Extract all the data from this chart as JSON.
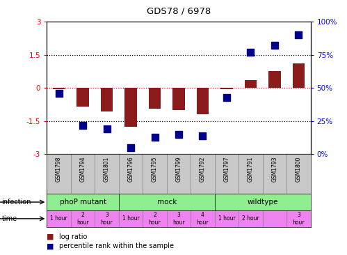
{
  "title": "GDS78 / 6978",
  "samples": [
    "GSM1798",
    "GSM1794",
    "GSM1801",
    "GSM1796",
    "GSM1795",
    "GSM1799",
    "GSM1792",
    "GSM1797",
    "GSM1791",
    "GSM1793",
    "GSM1800"
  ],
  "log_ratio": [
    -0.05,
    -0.85,
    -1.05,
    -1.75,
    -0.95,
    -1.0,
    -1.2,
    -0.05,
    0.35,
    0.75,
    1.1
  ],
  "percentile": [
    46,
    22,
    19,
    5,
    13,
    15,
    14,
    43,
    77,
    82,
    90
  ],
  "ylim": [
    -3,
    3
  ],
  "y2lim": [
    0,
    100
  ],
  "yticks": [
    -3,
    -1.5,
    0,
    1.5,
    3
  ],
  "y2ticks": [
    0,
    25,
    50,
    75,
    100
  ],
  "ytick_labels": [
    "-3",
    "-1.5",
    "0",
    "1.5",
    "3"
  ],
  "y2tick_labels": [
    "0%",
    "25%",
    "50%",
    "75%",
    "100%"
  ],
  "bar_color": "#8B1A1A",
  "dot_color": "#00008B",
  "bg_color": "#ffffff",
  "n_samples": 11,
  "bar_width": 0.5,
  "dot_size": 50,
  "infection_groups": [
    {
      "label": "phoP mutant",
      "start": 0,
      "end": 2
    },
    {
      "label": "mock",
      "start": 3,
      "end": 6
    },
    {
      "label": "wildtype",
      "start": 7,
      "end": 10
    }
  ],
  "infection_color": "#90EE90",
  "time_entries": [
    {
      "label": "1 hour",
      "idx": 0
    },
    {
      "label": "2\nhour",
      "idx": 1
    },
    {
      "label": "3\nhour",
      "idx": 2
    },
    {
      "label": "1 hour",
      "idx": 3
    },
    {
      "label": "2\nhour",
      "idx": 4
    },
    {
      "label": "3\nhour",
      "idx": 5
    },
    {
      "label": "4\nhour",
      "idx": 6
    },
    {
      "label": "1 hour",
      "idx": 7
    },
    {
      "label": "2 hour",
      "idx": 8
    },
    {
      "label": "3\nhour",
      "idx": 10
    }
  ],
  "time_color": "#EE82EE",
  "sample_bg_color": "#C8C8C8",
  "legend_items": [
    {
      "color": "#8B1A1A",
      "label": "log ratio"
    },
    {
      "color": "#00008B",
      "label": "percentile rank within the sample"
    }
  ]
}
